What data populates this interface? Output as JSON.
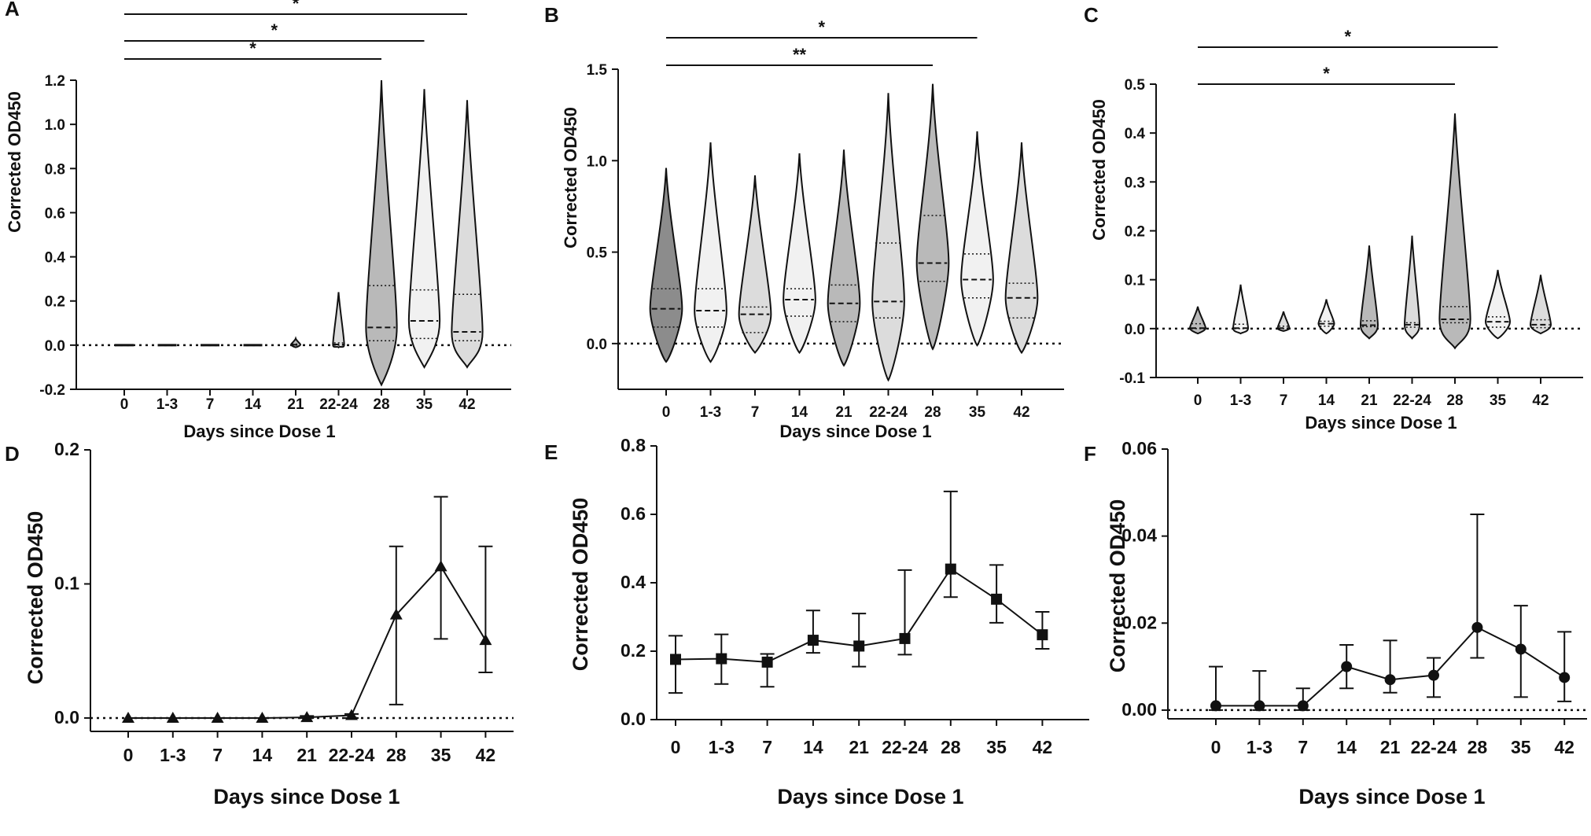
{
  "figure": {
    "colors": {
      "ink": "#111111",
      "dark": "#8c8c8c",
      "medium": "#b9b9b9",
      "light": "#dcdcdc",
      "lightest": "#f1f1f1",
      "white": "#ffffff"
    }
  },
  "chart_data": [
    {
      "panel": "A",
      "type": "violin",
      "xlabel": "Days since Dose 1",
      "ylabel": "Corrected OD450",
      "categories": [
        "0",
        "1-3",
        "7",
        "14",
        "21",
        "22-24",
        "28",
        "35",
        "42"
      ],
      "ylim": [
        -0.2,
        1.2
      ],
      "yticks": [
        -0.2,
        0.0,
        0.2,
        0.4,
        0.6,
        0.8,
        1.0,
        1.2
      ],
      "ytick_labels": [
        "-0.2",
        "0.0",
        "0.2",
        "0.4",
        "0.6",
        "0.8",
        "1.0",
        "1.2"
      ],
      "reference_line": 0,
      "medians": [
        0.0,
        0.0,
        0.0,
        0.0,
        0.002,
        0.003,
        0.08,
        0.11,
        0.06
      ],
      "quartiles": [
        [
          0.0,
          0.0
        ],
        [
          0.0,
          0.0
        ],
        [
          0.0,
          0.0
        ],
        [
          0.0,
          0.0
        ],
        [
          0.0,
          0.005
        ],
        [
          0.0,
          0.01
        ],
        [
          0.02,
          0.27
        ],
        [
          0.03,
          0.25
        ],
        [
          0.02,
          0.23
        ]
      ],
      "ranges": [
        [
          -0.005,
          0.005
        ],
        [
          -0.005,
          0.005
        ],
        [
          -0.005,
          0.005
        ],
        [
          -0.005,
          0.005
        ],
        [
          -0.01,
          0.03
        ],
        [
          -0.01,
          0.24
        ],
        [
          -0.18,
          1.2
        ],
        [
          -0.1,
          1.16
        ],
        [
          -0.1,
          1.11
        ]
      ],
      "shades": [
        "medium",
        "lightest",
        "light",
        "lightest",
        "medium",
        "light",
        "medium",
        "lightest",
        "light"
      ],
      "significance": [
        {
          "from": "0",
          "to": "28",
          "label": "*"
        },
        {
          "from": "0",
          "to": "35",
          "label": "*"
        },
        {
          "from": "0",
          "to": "42",
          "label": "*"
        }
      ]
    },
    {
      "panel": "B",
      "type": "violin",
      "xlabel": "Days since Dose 1",
      "ylabel": "Corrected OD450",
      "categories": [
        "0",
        "1-3",
        "7",
        "14",
        "21",
        "22-24",
        "28",
        "35",
        "42"
      ],
      "ylim": [
        -0.25,
        1.5
      ],
      "yticks": [
        0.0,
        0.5,
        1.0,
        1.5
      ],
      "ytick_labels": [
        "0.0",
        "0.5",
        "1.0",
        "1.5"
      ],
      "reference_line": 0,
      "medians": [
        0.19,
        0.18,
        0.16,
        0.24,
        0.22,
        0.23,
        0.44,
        0.35,
        0.25
      ],
      "quartiles": [
        [
          0.09,
          0.3
        ],
        [
          0.09,
          0.3
        ],
        [
          0.06,
          0.2
        ],
        [
          0.15,
          0.3
        ],
        [
          0.12,
          0.32
        ],
        [
          0.14,
          0.55
        ],
        [
          0.34,
          0.7
        ],
        [
          0.25,
          0.49
        ],
        [
          0.14,
          0.33
        ]
      ],
      "ranges": [
        [
          -0.1,
          0.96
        ],
        [
          -0.1,
          1.1
        ],
        [
          -0.05,
          0.92
        ],
        [
          -0.05,
          1.04
        ],
        [
          -0.12,
          1.06
        ],
        [
          -0.2,
          1.37
        ],
        [
          -0.03,
          1.42
        ],
        [
          -0.01,
          1.16
        ],
        [
          -0.05,
          1.1
        ]
      ],
      "shades": [
        "dark",
        "lightest",
        "light",
        "lightest",
        "medium",
        "light",
        "medium",
        "lightest",
        "light"
      ],
      "significance": [
        {
          "from": "0",
          "to": "28",
          "label": "**"
        },
        {
          "from": "0",
          "to": "35",
          "label": "*"
        }
      ]
    },
    {
      "panel": "C",
      "type": "violin",
      "xlabel": "Days since Dose 1",
      "ylabel": "Corrected OD450",
      "categories": [
        "0",
        "1-3",
        "7",
        "14",
        "21",
        "22-24",
        "28",
        "35",
        "42"
      ],
      "ylim": [
        -0.1,
        0.5
      ],
      "yticks": [
        -0.1,
        0.0,
        0.1,
        0.2,
        0.3,
        0.4,
        0.5
      ],
      "ytick_labels": [
        "-0.1",
        "0.0",
        "0.1",
        "0.2",
        "0.3",
        "0.4",
        "0.5"
      ],
      "reference_line": 0,
      "medians": [
        0.001,
        0.001,
        0.001,
        0.01,
        0.007,
        0.008,
        0.019,
        0.014,
        0.008
      ],
      "quartiles": [
        [
          0.0,
          0.01
        ],
        [
          0.0,
          0.009
        ],
        [
          0.0,
          0.005
        ],
        [
          0.005,
          0.015
        ],
        [
          0.004,
          0.016
        ],
        [
          0.003,
          0.012
        ],
        [
          0.012,
          0.045
        ],
        [
          0.003,
          0.024
        ],
        [
          0.002,
          0.018
        ]
      ],
      "ranges": [
        [
          -0.01,
          0.045
        ],
        [
          -0.01,
          0.09
        ],
        [
          -0.005,
          0.035
        ],
        [
          -0.01,
          0.06
        ],
        [
          -0.02,
          0.17
        ],
        [
          -0.02,
          0.19
        ],
        [
          -0.04,
          0.44
        ],
        [
          -0.02,
          0.12
        ],
        [
          -0.01,
          0.11
        ]
      ],
      "shades": [
        "medium",
        "lightest",
        "light",
        "lightest",
        "medium",
        "light",
        "medium",
        "lightest",
        "light"
      ],
      "significance": [
        {
          "from": "0",
          "to": "28",
          "label": "*"
        },
        {
          "from": "0",
          "to": "35",
          "label": "*"
        }
      ]
    },
    {
      "panel": "D",
      "type": "line",
      "marker": "triangle",
      "xlabel": "Days since Dose 1",
      "ylabel": "Corrected OD450",
      "categories": [
        "0",
        "1-3",
        "7",
        "14",
        "21",
        "22-24",
        "28",
        "35",
        "42"
      ],
      "ylim": [
        -0.01,
        0.2
      ],
      "yticks": [
        0.0,
        0.1,
        0.2
      ],
      "ytick_labels": [
        "0.0",
        "0.1",
        "0.2"
      ],
      "reference_line": 0,
      "values": [
        0.0,
        0.0,
        0.0,
        0.0,
        0.0005,
        0.002,
        0.077,
        0.113,
        0.058
      ],
      "error_low": [
        0.0,
        0.0,
        0.0,
        0.0,
        0.0,
        0.0,
        0.01,
        0.059,
        0.034
      ],
      "error_high": [
        0.0,
        0.0,
        0.0,
        0.0,
        0.0015,
        0.003,
        0.128,
        0.165,
        0.128
      ]
    },
    {
      "panel": "E",
      "type": "line",
      "marker": "square",
      "xlabel": "Days since Dose 1",
      "ylabel": "Corrected OD450",
      "categories": [
        "0",
        "1-3",
        "7",
        "14",
        "21",
        "22-24",
        "28",
        "35",
        "42"
      ],
      "ylim": [
        0.0,
        0.8
      ],
      "yticks": [
        0.0,
        0.2,
        0.4,
        0.6,
        0.8
      ],
      "ytick_labels": [
        "0.0",
        "0.2",
        "0.4",
        "0.6",
        "0.8"
      ],
      "reference_line": null,
      "values": [
        0.176,
        0.178,
        0.168,
        0.232,
        0.215,
        0.237,
        0.44,
        0.352,
        0.248
      ],
      "error_low": [
        0.078,
        0.104,
        0.096,
        0.195,
        0.155,
        0.19,
        0.358,
        0.283,
        0.207
      ],
      "error_high": [
        0.245,
        0.249,
        0.192,
        0.319,
        0.31,
        0.437,
        0.667,
        0.452,
        0.315
      ]
    },
    {
      "panel": "F",
      "type": "line",
      "marker": "circle",
      "xlabel": "Days since Dose 1",
      "ylabel": "Corrected OD450",
      "categories": [
        "0",
        "1-3",
        "7",
        "14",
        "21",
        "22-24",
        "28",
        "35",
        "42"
      ],
      "ylim": [
        -0.002,
        0.06
      ],
      "yticks": [
        0.0,
        0.02,
        0.04,
        0.06
      ],
      "ytick_labels": [
        "0.00",
        "0.02",
        "0.04",
        "0.06"
      ],
      "reference_line": 0,
      "values": [
        0.001,
        0.001,
        0.001,
        0.01,
        0.007,
        0.008,
        0.019,
        0.014,
        0.0075
      ],
      "error_low": [
        0.0,
        0.0,
        0.0,
        0.005,
        0.004,
        0.003,
        0.012,
        0.003,
        0.002
      ],
      "error_high": [
        0.01,
        0.009,
        0.005,
        0.015,
        0.016,
        0.012,
        0.045,
        0.024,
        0.018
      ]
    }
  ]
}
